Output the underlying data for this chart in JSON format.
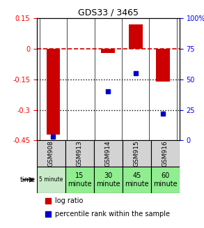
{
  "title": "GDS33 / 3465",
  "samples": [
    "GSM908",
    "GSM913",
    "GSM914",
    "GSM915",
    "GSM916"
  ],
  "time_labels": [
    "5 minute",
    "15\nminute",
    "30\nminute",
    "45\nminute",
    "60\nminute"
  ],
  "time_colors": [
    "#d4edda",
    "#90ee90",
    "#90ee90",
    "#90ee90",
    "#90ee90"
  ],
  "time_bg_light": "#d8f0d8",
  "sample_bg": "#d3d3d3",
  "log_ratio": [
    -0.42,
    0.0,
    -0.02,
    0.12,
    -0.16
  ],
  "percentile_rank": [
    3,
    null,
    40,
    55,
    22
  ],
  "ylim_left": [
    -0.45,
    0.15
  ],
  "ylim_right": [
    0,
    100
  ],
  "yticks_left": [
    0.15,
    0,
    -0.15,
    -0.3,
    -0.45
  ],
  "yticks_right": [
    100,
    75,
    50,
    25,
    0
  ],
  "bar_color": "#cc0000",
  "dot_color": "#0000cc",
  "hline_color": "#cc0000",
  "grid_color": "#000000",
  "legend_bar_label": "log ratio",
  "legend_dot_label": "percentile rank within the sample"
}
